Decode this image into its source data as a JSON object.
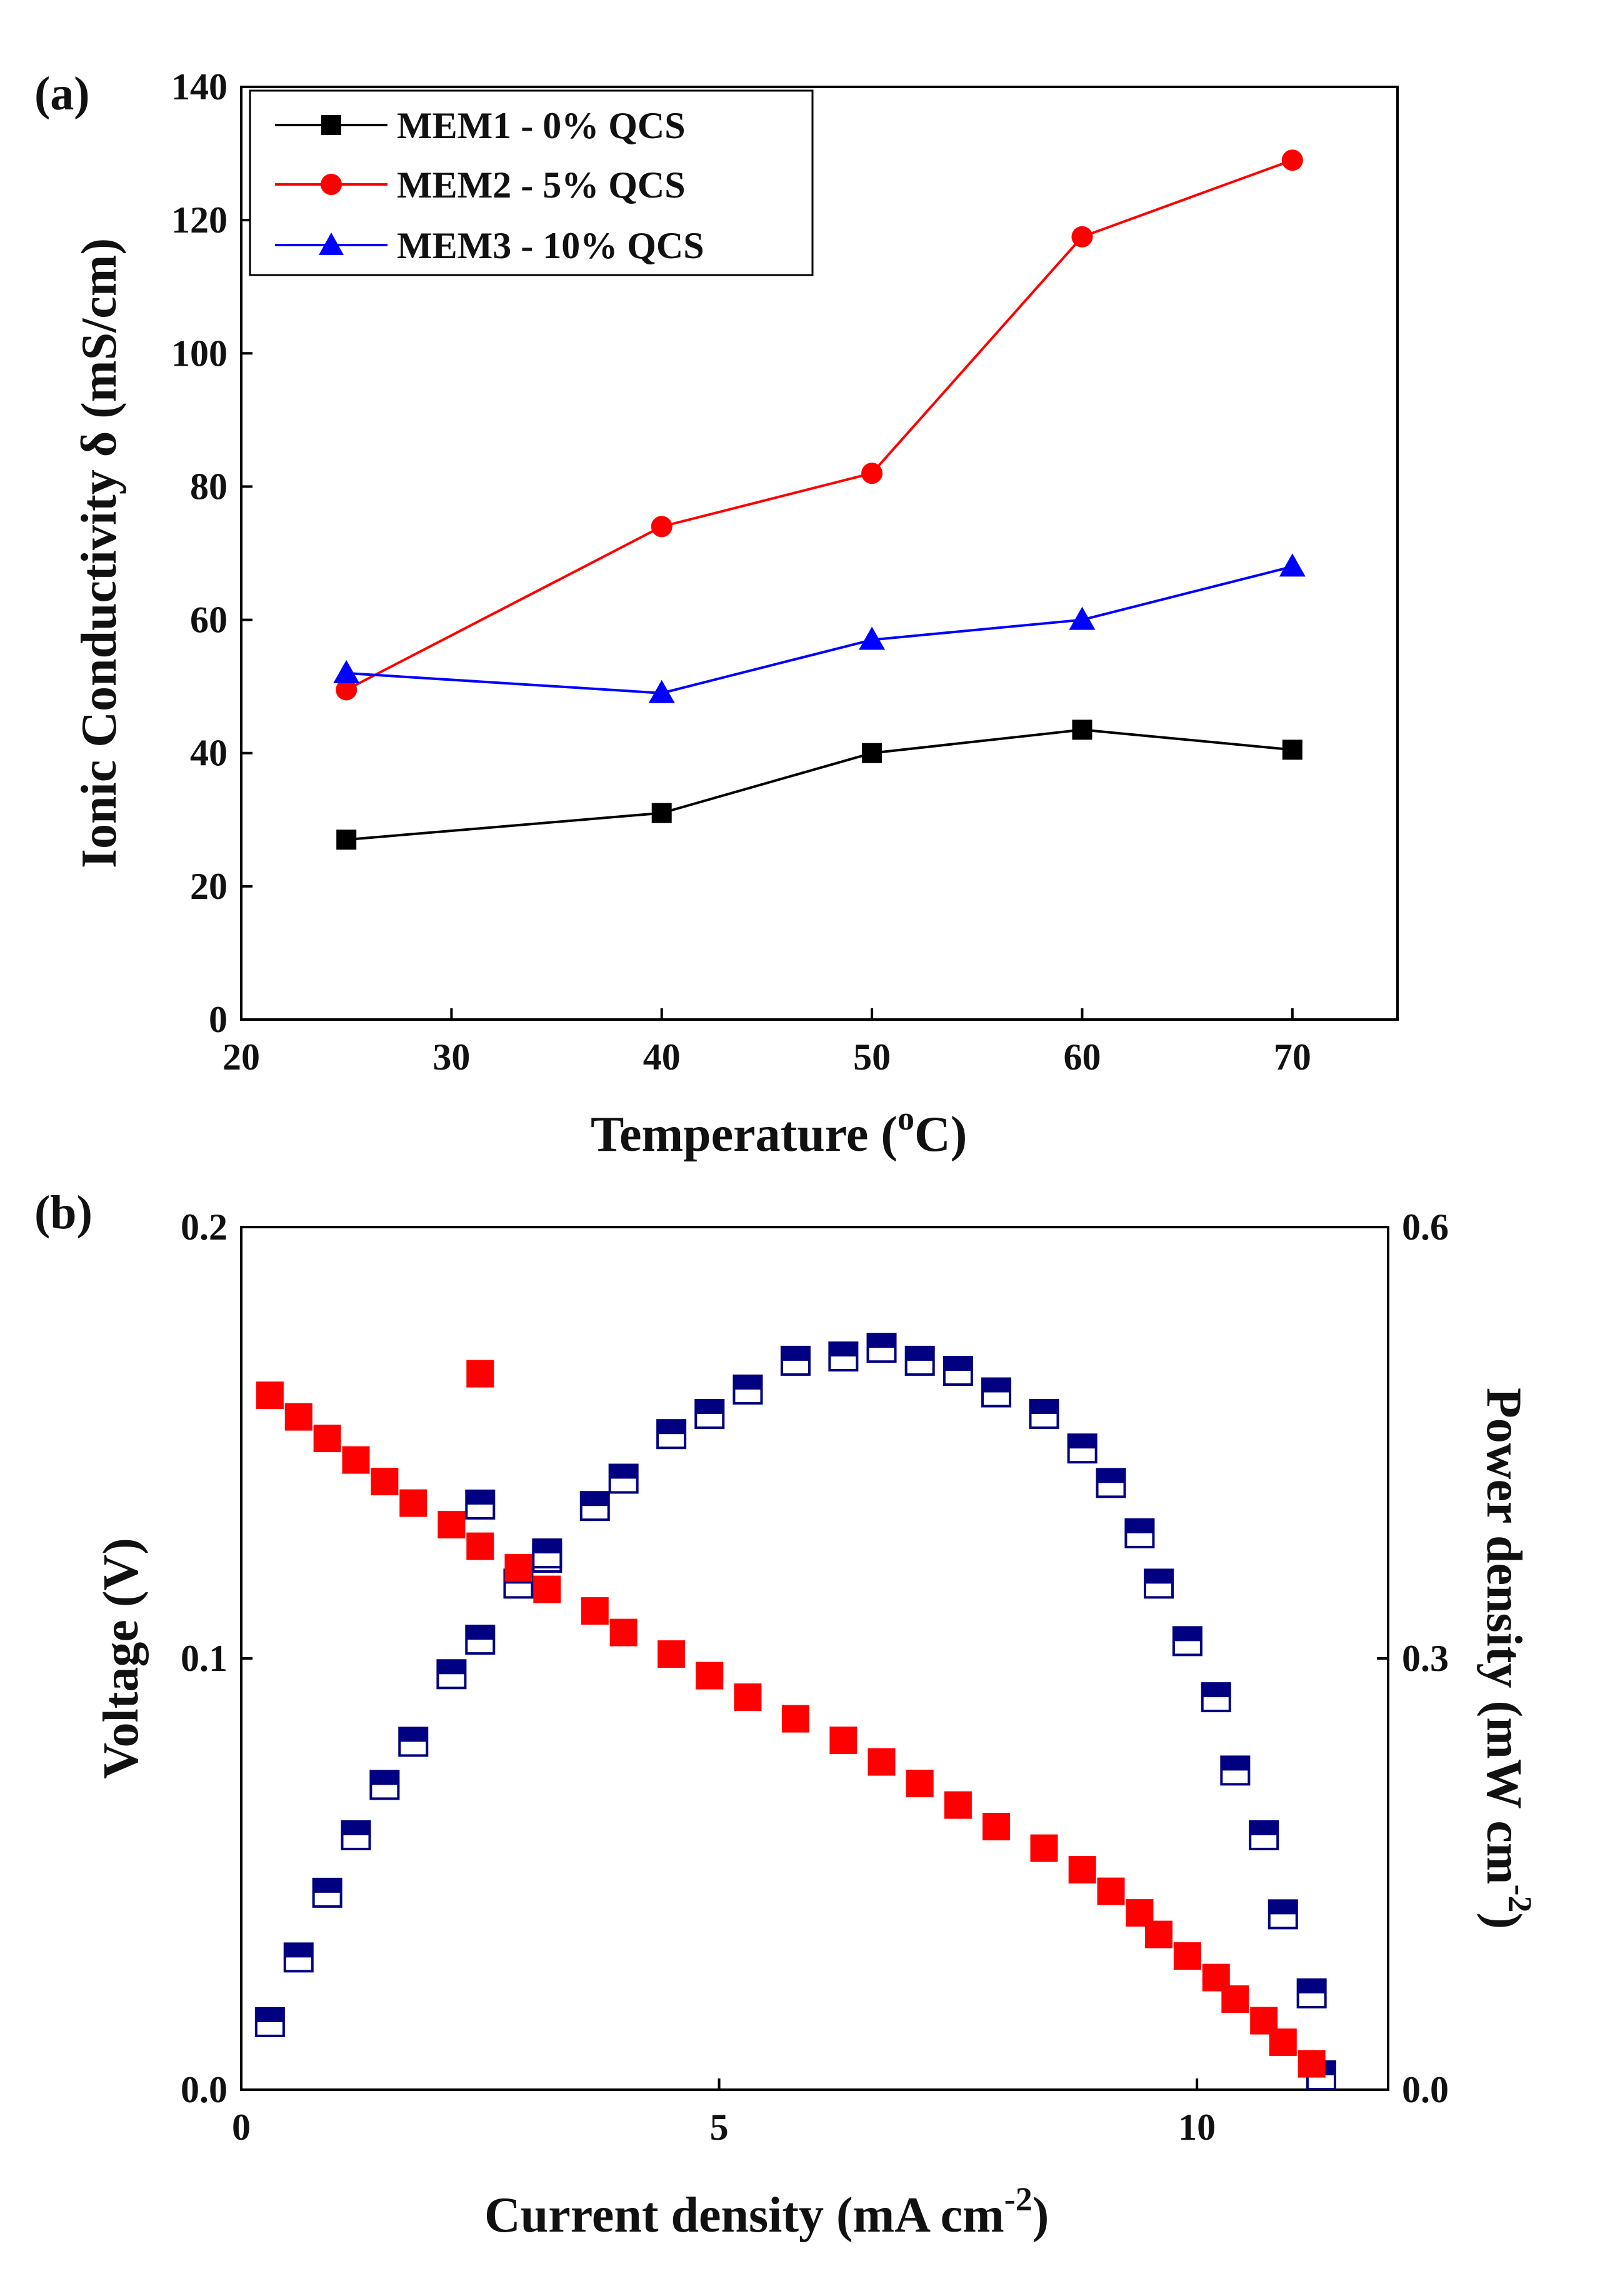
{
  "chart_data": [
    {
      "panel_label": "(a)",
      "type": "line",
      "xlabel": "Temperature (",
      "xlabel_sup": "o",
      "xlabel_end": "C)",
      "ylabel": "Ionic Conductivity δ (mS/cm)",
      "xlim": [
        20,
        75
      ],
      "ylim": [
        0,
        140
      ],
      "xticks": [
        20,
        30,
        40,
        50,
        60,
        70
      ],
      "yticks": [
        0,
        20,
        40,
        60,
        80,
        100,
        120,
        140
      ],
      "x": [
        25,
        40,
        50,
        60,
        70
      ],
      "legend_position": "top-left",
      "series": [
        {
          "name": "MEM1 - 0% QCS",
          "color": "#000000",
          "marker": "square",
          "values": [
            27,
            31,
            40,
            43.5,
            40.5
          ]
        },
        {
          "name": "MEM2 - 5% QCS",
          "color": "#ff0000",
          "marker": "circle",
          "values": [
            49.5,
            74,
            82,
            117.5,
            129
          ]
        },
        {
          "name": "MEM3 - 10% QCS",
          "color": "#0000ff",
          "marker": "triangle",
          "values": [
            52,
            49,
            57,
            60,
            68
          ]
        }
      ]
    },
    {
      "panel_label": "(b)",
      "type": "scatter",
      "xlabel": "Current density (mA cm",
      "xlabel_sup": "-2",
      "xlabel_end": ")",
      "ylabel": "Voltage (V)",
      "y2label": "Power density (mW cm",
      "y2label_sup": "-2",
      "y2label_end": ")",
      "xlim": [
        0,
        12
      ],
      "ylim": [
        0,
        0.2
      ],
      "y2lim": [
        0,
        0.6
      ],
      "xticks": [
        0,
        5,
        10
      ],
      "xtick_labels": [
        "0",
        "5",
        "10"
      ],
      "yticks": [
        0,
        0.1,
        0.2
      ],
      "ytick_labels": [
        "0.0",
        "0.1",
        "0.2"
      ],
      "y2ticks": [
        0,
        0.3,
        0.6
      ],
      "y2tick_labels": [
        "0.0",
        "0.3",
        "0.6"
      ],
      "series": [
        {
          "name": "Voltage",
          "axis": "left",
          "color": "#ff0000",
          "marker": "square-filled",
          "x": [
            0.3,
            0.6,
            0.9,
            1.2,
            1.5,
            1.8,
            2.2,
            2.5,
            2.9,
            3.2,
            3.7,
            4.0,
            4.5,
            4.9,
            5.3,
            5.8,
            6.3,
            6.7,
            7.1,
            7.5,
            7.9,
            8.4,
            8.8,
            9.1,
            9.4,
            9.6,
            9.9,
            10.2,
            10.4,
            10.7,
            10.9,
            11.2,
            2.5
          ],
          "values": [
            0.161,
            0.156,
            0.151,
            0.146,
            0.141,
            0.136,
            0.131,
            0.126,
            0.121,
            0.116,
            0.111,
            0.106,
            0.101,
            0.096,
            0.091,
            0.086,
            0.081,
            0.076,
            0.071,
            0.066,
            0.061,
            0.056,
            0.051,
            0.046,
            0.041,
            0.036,
            0.031,
            0.026,
            0.021,
            0.016,
            0.011,
            0.006,
            0.166
          ]
        },
        {
          "name": "Power density",
          "axis": "right",
          "color": "#000080",
          "marker": "square-half-filled",
          "x": [
            0.3,
            0.6,
            0.9,
            1.2,
            1.5,
            1.8,
            2.2,
            2.5,
            2.9,
            3.2,
            3.7,
            4.0,
            4.5,
            4.9,
            5.3,
            5.8,
            6.3,
            6.7,
            7.1,
            7.5,
            7.9,
            8.4,
            8.8,
            9.1,
            9.4,
            9.6,
            9.9,
            10.2,
            10.4,
            10.7,
            10.9,
            11.2,
            11.3,
            2.5,
            3.2
          ],
          "values": [
            0.047,
            0.092,
            0.137,
            0.177,
            0.212,
            0.242,
            0.289,
            0.313,
            0.352,
            0.37,
            0.406,
            0.425,
            0.456,
            0.47,
            0.487,
            0.507,
            0.51,
            0.516,
            0.507,
            0.5,
            0.485,
            0.47,
            0.446,
            0.422,
            0.387,
            0.352,
            0.312,
            0.273,
            0.222,
            0.177,
            0.122,
            0.067,
            0.01,
            0.407,
            0.373
          ]
        }
      ]
    }
  ]
}
